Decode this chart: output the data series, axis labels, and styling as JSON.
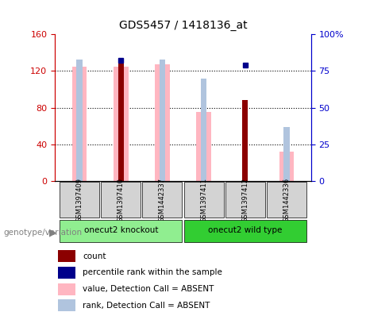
{
  "title": "GDS5457 / 1418136_at",
  "samples": [
    "GSM1397409",
    "GSM1397410",
    "GSM1442337",
    "GSM1397411",
    "GSM1397412",
    "GSM1442336"
  ],
  "groups": [
    {
      "name": "onecut2 knockout",
      "color": "#90EE90",
      "indices": [
        0,
        1,
        2
      ]
    },
    {
      "name": "onecut2 wild type",
      "color": "#32CD32",
      "indices": [
        3,
        4,
        5
      ]
    }
  ],
  "count_values": [
    0,
    128,
    0,
    0,
    88,
    0
  ],
  "percentile_rank_values": [
    0,
    82,
    0,
    0,
    79,
    0
  ],
  "absent_value_values": [
    125,
    125,
    127,
    75,
    0,
    32
  ],
  "absent_rank_values": [
    83,
    0,
    83,
    70,
    0,
    37
  ],
  "left_yaxis_color": "#CC0000",
  "right_yaxis_color": "#0000CC",
  "left_ylim": [
    0,
    160
  ],
  "right_ylim": [
    0,
    100
  ],
  "left_yticks": [
    0,
    40,
    80,
    120,
    160
  ],
  "right_yticks": [
    0,
    25,
    50,
    75,
    100
  ],
  "right_yticklabels": [
    "0",
    "25",
    "50",
    "75",
    "100%"
  ],
  "count_color": "#8B0000",
  "percentile_rank_color": "#00008B",
  "absent_value_color": "#FFB6C1",
  "absent_rank_color": "#B0C4DE",
  "label_bg_color": "#D3D3D3",
  "legend_items": [
    {
      "color": "#8B0000",
      "label": "count"
    },
    {
      "color": "#00008B",
      "label": "percentile rank within the sample"
    },
    {
      "color": "#FFB6C1",
      "label": "value, Detection Call = ABSENT"
    },
    {
      "color": "#B0C4DE",
      "label": "rank, Detection Call = ABSENT"
    }
  ],
  "genotype_label": "genotype/variation"
}
